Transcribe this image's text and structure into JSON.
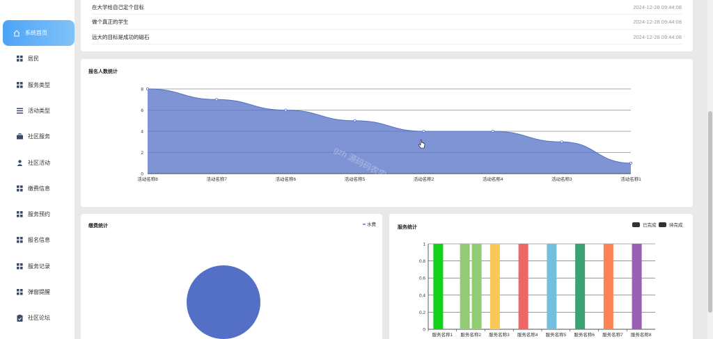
{
  "sidebar": {
    "items": [
      {
        "label": "系统首页",
        "icon": "home-icon",
        "active": true
      },
      {
        "label": "居民",
        "icon": "grid-icon"
      },
      {
        "label": "服务类型",
        "icon": "grid-icon"
      },
      {
        "label": "活动类型",
        "icon": "list-icon"
      },
      {
        "label": "社区服务",
        "icon": "briefcase-icon"
      },
      {
        "label": "社区活动",
        "icon": "user-icon"
      },
      {
        "label": "缴费信息",
        "icon": "grid-icon"
      },
      {
        "label": "服务预约",
        "icon": "grid-icon"
      },
      {
        "label": "报名信息",
        "icon": "grid-icon"
      },
      {
        "label": "服务记录",
        "icon": "grid-icon"
      },
      {
        "label": "弹窗提醒",
        "icon": "grid-icon"
      },
      {
        "label": "社区论坛",
        "icon": "clipboard-icon"
      }
    ]
  },
  "news": [
    {
      "title": "在大学给自己定个目标",
      "date": "2024-12-28 09:44:08"
    },
    {
      "title": "做个真正的学生",
      "date": "2024-12-28 09:44:08"
    },
    {
      "title": "远大的目标是成功的磁石",
      "date": "2024-12-28 09:44:08"
    }
  ],
  "watermark": "gzh 源码码农宅",
  "charts": {
    "signup": {
      "title": "报名人数统计"
    },
    "payment": {
      "title": "缴费统计",
      "legend": "水费",
      "legend_color": "#5470c6"
    },
    "service": {
      "title": "服务统计",
      "legend_done": "已完成",
      "legend_pending": "待完成",
      "legend_color": "#333333"
    }
  },
  "chart_data": [
    {
      "type": "area",
      "title": "报名人数统计",
      "categories": [
        "活动名称8",
        "活动名称7",
        "活动名称6",
        "活动名称5",
        "活动名称2",
        "活动名称4",
        "活动名称3",
        "活动名称1"
      ],
      "values": [
        8,
        7,
        6,
        5,
        4,
        4,
        3,
        1
      ],
      "ylim": [
        0,
        8
      ],
      "yticks": [
        0,
        2,
        4,
        6,
        8
      ],
      "grid": true,
      "color": "#5470c6"
    },
    {
      "type": "pie",
      "title": "缴费统计",
      "series": [
        {
          "name": "水费",
          "value": 1
        }
      ],
      "legend": "top-right",
      "color": "#5470c6"
    },
    {
      "type": "bar",
      "title": "服务统计",
      "categories": [
        "服务名称1",
        "服务名称2",
        "服务名称3",
        "服务名称4",
        "服务名称5",
        "服务名称6",
        "服务名称7",
        "服务名称8"
      ],
      "series": [
        {
          "name": "已完成",
          "values": [
            1,
            1,
            1,
            1,
            1,
            1,
            1,
            1
          ]
        },
        {
          "name": "待完成",
          "values": [
            null,
            1,
            null,
            null,
            null,
            null,
            null,
            null
          ]
        }
      ],
      "bar_colors": [
        "#11d11a",
        "#91cc75",
        "#fac858",
        "#ee6666",
        "#73c0de",
        "#3ba272",
        "#fc8452",
        "#9a60b4"
      ],
      "ylim": [
        0,
        1
      ],
      "yticks": [
        0,
        0.2,
        0.4,
        0.6,
        0.8,
        1
      ],
      "legend": "top-right",
      "grid": true
    }
  ]
}
